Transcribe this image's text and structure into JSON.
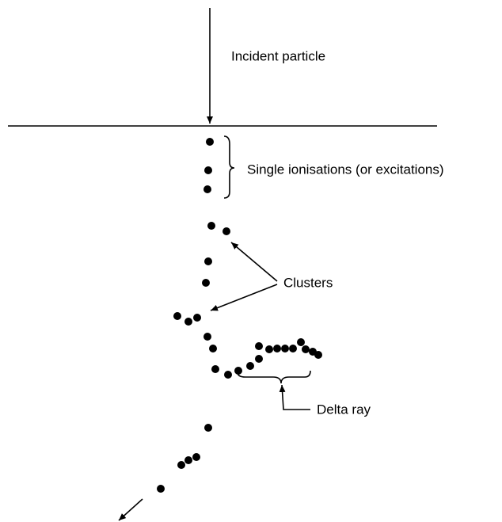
{
  "labels": {
    "incident": "Incident particle",
    "single": "Single ionisations (or excitations)",
    "clusters": "Clusters",
    "delta": "Delta ray"
  }
}
